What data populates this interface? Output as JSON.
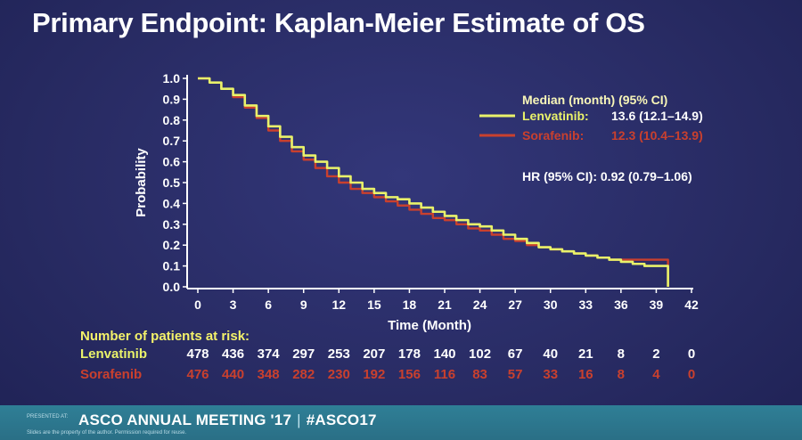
{
  "slide": {
    "title": "Primary Endpoint: Kaplan-Meier Estimate of OS"
  },
  "chart_data": {
    "type": "line",
    "title": "",
    "xlabel": "Time (Month)",
    "ylabel": "Probability",
    "xlim": [
      0,
      42
    ],
    "ylim": [
      0,
      1.0
    ],
    "xticks": [
      "0",
      "3",
      "6",
      "9",
      "12",
      "15",
      "18",
      "21",
      "24",
      "27",
      "30",
      "33",
      "36",
      "39",
      "42"
    ],
    "yticks": [
      "0.0",
      "0.1",
      "0.2",
      "0.3",
      "0.4",
      "0.5",
      "0.6",
      "0.7",
      "0.8",
      "0.9",
      "1.0"
    ],
    "legend_heading": "Median (month) (95% CI)",
    "hr_text": "HR (95% CI): 0.92 (0.79–1.06)",
    "colors": {
      "lenvatinib": "#e9f26a",
      "sorafenib": "#c9402e"
    },
    "series": [
      {
        "name": "Lenvatinib",
        "median_label": "13.6 (12.1–14.9)",
        "x": [
          0,
          1,
          2,
          3,
          4,
          5,
          6,
          7,
          8,
          9,
          10,
          11,
          12,
          13,
          14,
          15,
          16,
          17,
          18,
          19,
          20,
          21,
          22,
          23,
          24,
          25,
          26,
          27,
          28,
          29,
          30,
          31,
          32,
          33,
          34,
          35,
          36,
          37,
          38,
          39,
          39.6,
          40
        ],
        "y": [
          1.0,
          0.98,
          0.95,
          0.92,
          0.87,
          0.82,
          0.77,
          0.72,
          0.67,
          0.63,
          0.6,
          0.57,
          0.53,
          0.5,
          0.47,
          0.45,
          0.43,
          0.42,
          0.4,
          0.38,
          0.36,
          0.34,
          0.32,
          0.3,
          0.29,
          0.27,
          0.25,
          0.23,
          0.21,
          0.19,
          0.18,
          0.17,
          0.16,
          0.15,
          0.14,
          0.13,
          0.12,
          0.11,
          0.1,
          0.1,
          0.1,
          0.0
        ]
      },
      {
        "name": "Sorafenib",
        "median_label": "12.3 (10.4–13.9)",
        "x": [
          0,
          1,
          2,
          3,
          4,
          5,
          6,
          7,
          8,
          9,
          10,
          11,
          12,
          13,
          14,
          15,
          16,
          17,
          18,
          19,
          20,
          21,
          22,
          23,
          24,
          25,
          26,
          27,
          28,
          29,
          30,
          31,
          32,
          33,
          34,
          35,
          36,
          37,
          38,
          39,
          39.8,
          40
        ],
        "y": [
          1.0,
          0.98,
          0.95,
          0.91,
          0.86,
          0.81,
          0.75,
          0.7,
          0.65,
          0.61,
          0.57,
          0.53,
          0.5,
          0.47,
          0.45,
          0.43,
          0.41,
          0.39,
          0.37,
          0.35,
          0.33,
          0.32,
          0.3,
          0.28,
          0.27,
          0.25,
          0.23,
          0.22,
          0.2,
          0.19,
          0.18,
          0.17,
          0.16,
          0.15,
          0.14,
          0.13,
          0.13,
          0.13,
          0.13,
          0.13,
          0.13,
          0.0
        ]
      }
    ]
  },
  "risk_table": {
    "title": "Number of patients at risk:",
    "rows": [
      {
        "label": "Lenvatinib",
        "values": [
          "478",
          "436",
          "374",
          "297",
          "253",
          "207",
          "178",
          "140",
          "102",
          "67",
          "40",
          "21",
          "8",
          "2",
          "0"
        ]
      },
      {
        "label": "Sorafenib",
        "values": [
          "476",
          "440",
          "348",
          "282",
          "230",
          "192",
          "156",
          "116",
          "83",
          "57",
          "33",
          "16",
          "8",
          "4",
          "0"
        ]
      }
    ]
  },
  "footer": {
    "meeting": "ASCO ANNUAL MEETING '17",
    "hashtag": "#ASCO17",
    "presented": "PRESENTED AT:",
    "disclaimer": "Slides are the property of the author. Permission required for reuse."
  }
}
